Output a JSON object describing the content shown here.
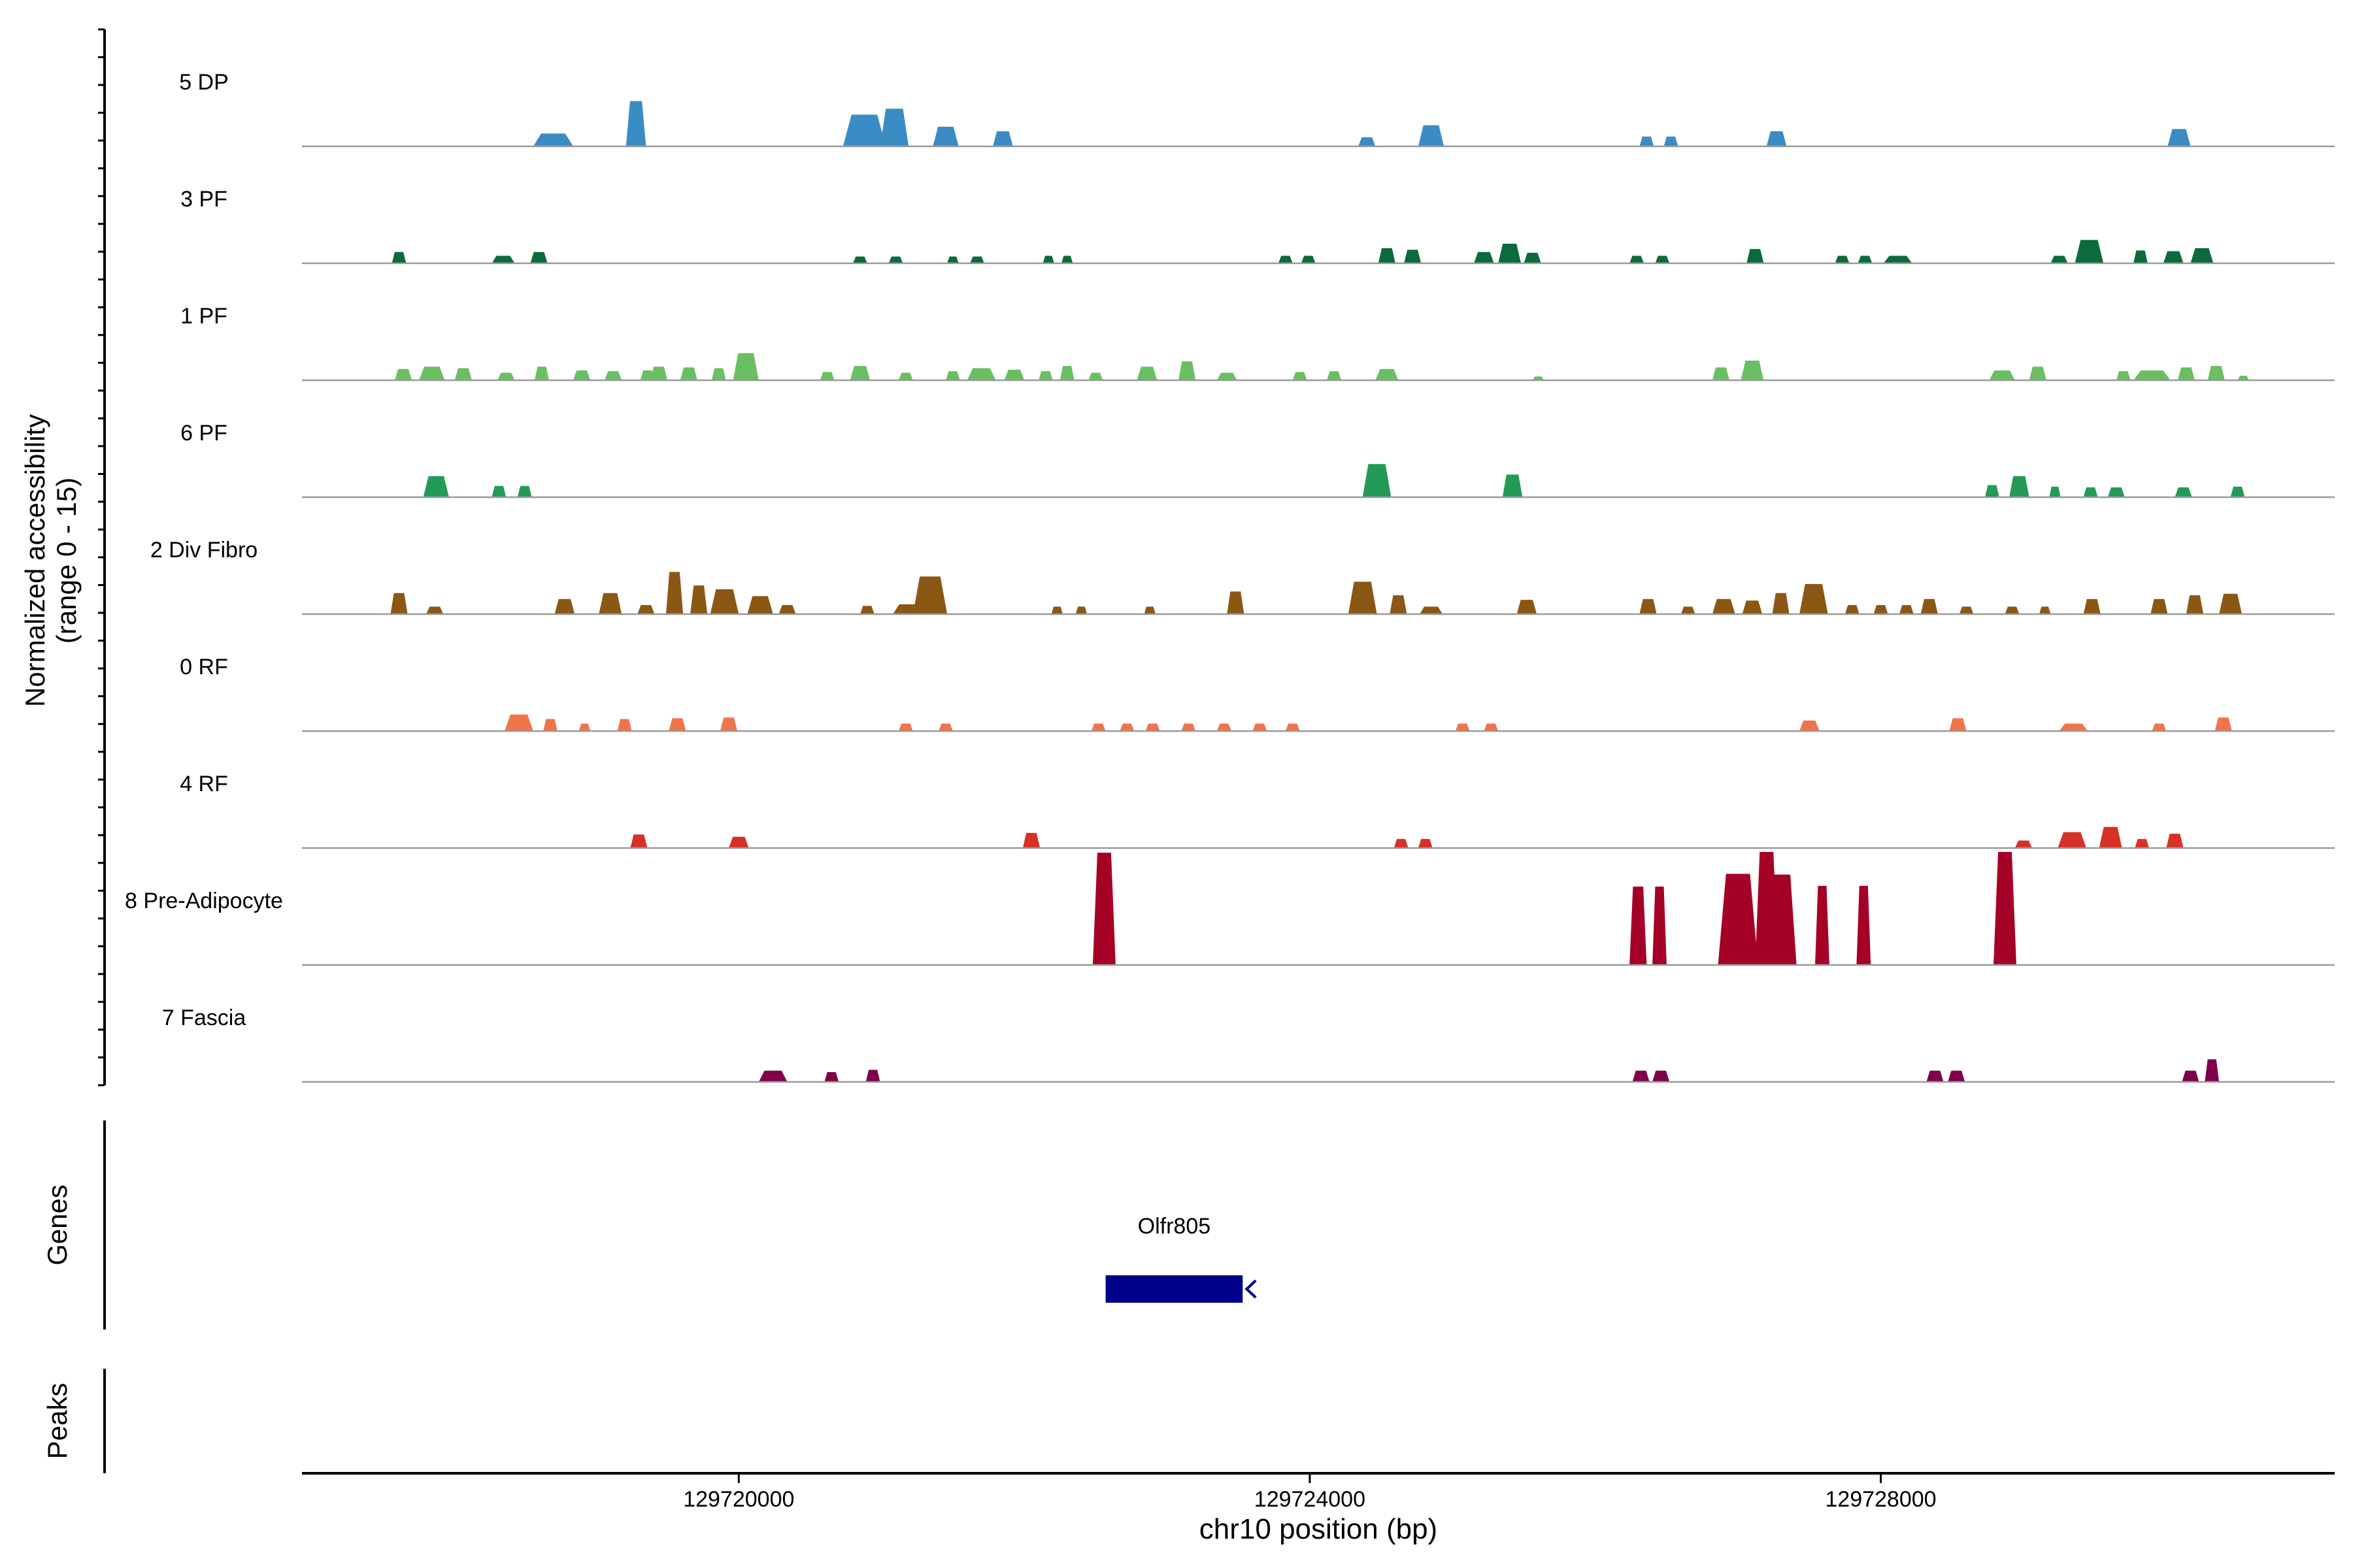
{
  "chart_data": {
    "type": "area",
    "title": "",
    "xlabel": "chr10 position (bp)",
    "ylabel_line1": "Normalized accessibility",
    "ylabel_line2": "(range 0 - 15)",
    "xlim": [
      129716940,
      129731180
    ],
    "ylim": [
      0,
      15
    ],
    "x_ticks": [
      {
        "value": 129720000,
        "label": "129720000"
      },
      {
        "value": 129724000,
        "label": "129724000"
      },
      {
        "value": 129728000,
        "label": "129728000"
      }
    ],
    "series": [
      {
        "name": "5 DP",
        "color": "#3a8cc4",
        "peaks": [
          [
            129718700,
            140,
            1.7
          ],
          [
            129719280,
            70,
            6.0
          ],
          [
            129720880,
            150,
            4.2
          ],
          [
            129721090,
            100,
            5.0
          ],
          [
            129721450,
            90,
            2.6
          ],
          [
            129721850,
            70,
            2.0
          ],
          [
            129724400,
            60,
            1.2
          ],
          [
            129724850,
            90,
            2.8
          ],
          [
            129726360,
            50,
            1.3
          ],
          [
            129726530,
            50,
            1.3
          ],
          [
            129727270,
            70,
            2.0
          ],
          [
            129730090,
            80,
            2.3
          ]
        ]
      },
      {
        "name": "3 PF",
        "color": "#0b6b3a",
        "peaks": [
          [
            129717620,
            50,
            1.5
          ],
          [
            129718350,
            80,
            1.0
          ],
          [
            129718600,
            60,
            1.5
          ],
          [
            129720850,
            50,
            0.9
          ],
          [
            129721100,
            50,
            0.9
          ],
          [
            129721500,
            40,
            0.9
          ],
          [
            129721670,
            50,
            0.9
          ],
          [
            129722170,
            40,
            1.0
          ],
          [
            129722300,
            40,
            1.0
          ],
          [
            129723830,
            50,
            1.0
          ],
          [
            129723990,
            50,
            1.0
          ],
          [
            129724540,
            60,
            2.0
          ],
          [
            129724720,
            60,
            1.8
          ],
          [
            129725220,
            70,
            1.5
          ],
          [
            129725400,
            80,
            2.6
          ],
          [
            129725560,
            60,
            1.4
          ],
          [
            129726290,
            50,
            1.0
          ],
          [
            129726470,
            50,
            1.0
          ],
          [
            129727120,
            60,
            1.9
          ],
          [
            129727730,
            50,
            1.0
          ],
          [
            129727890,
            50,
            1.0
          ],
          [
            129728120,
            100,
            1.0
          ],
          [
            129729250,
            60,
            1.0
          ],
          [
            129729460,
            100,
            3.1
          ],
          [
            129729820,
            50,
            1.7
          ],
          [
            129730050,
            70,
            1.6
          ],
          [
            129730250,
            80,
            2.0
          ]
        ]
      },
      {
        "name": "1 PF",
        "color": "#6abf63",
        "peaks": [
          [
            129717650,
            60,
            1.5
          ],
          [
            129717850,
            90,
            1.8
          ],
          [
            129718070,
            60,
            1.6
          ],
          [
            129718370,
            60,
            1.0
          ],
          [
            129718620,
            50,
            1.8
          ],
          [
            129718900,
            60,
            1.3
          ],
          [
            129719120,
            60,
            1.2
          ],
          [
            129719360,
            50,
            1.3
          ],
          [
            129719440,
            60,
            1.8
          ],
          [
            129719650,
            60,
            1.7
          ],
          [
            129719860,
            50,
            1.6
          ],
          [
            129720050,
            90,
            3.6
          ],
          [
            129720620,
            50,
            1.1
          ],
          [
            129720850,
            70,
            1.9
          ],
          [
            129721170,
            50,
            1.0
          ],
          [
            129721500,
            50,
            1.2
          ],
          [
            129721700,
            100,
            1.6
          ],
          [
            129721930,
            70,
            1.4
          ],
          [
            129722150,
            50,
            1.2
          ],
          [
            129722300,
            50,
            1.9
          ],
          [
            129722500,
            50,
            1.0
          ],
          [
            129722860,
            70,
            1.8
          ],
          [
            129723140,
            60,
            2.5
          ],
          [
            129723420,
            70,
            1.0
          ],
          [
            129723930,
            50,
            1.1
          ],
          [
            129724170,
            50,
            1.2
          ],
          [
            129724540,
            80,
            1.5
          ],
          [
            129725600,
            40,
            0.5
          ],
          [
            129726880,
            60,
            1.7
          ],
          [
            129727100,
            80,
            2.6
          ],
          [
            129728850,
            90,
            1.3
          ],
          [
            129729100,
            60,
            1.8
          ],
          [
            129729700,
            50,
            1.2
          ],
          [
            129729900,
            130,
            1.3
          ],
          [
            129730140,
            60,
            1.7
          ],
          [
            129730350,
            60,
            1.9
          ],
          [
            129730540,
            40,
            0.6
          ]
        ]
      },
      {
        "name": "6 PF",
        "color": "#239b56",
        "peaks": [
          [
            129717880,
            90,
            2.8
          ],
          [
            129718320,
            50,
            1.5
          ],
          [
            129718500,
            50,
            1.5
          ],
          [
            129724470,
            100,
            4.4
          ],
          [
            129725420,
            70,
            3.0
          ],
          [
            129728780,
            50,
            1.6
          ],
          [
            129728970,
            70,
            2.8
          ],
          [
            129729220,
            40,
            1.4
          ],
          [
            129729470,
            50,
            1.3
          ],
          [
            129729650,
            60,
            1.3
          ],
          [
            129730120,
            60,
            1.3
          ],
          [
            129730500,
            50,
            1.4
          ]
        ]
      },
      {
        "name": "2 Div Fibro",
        "color": "#8b5714",
        "peaks": [
          [
            129717620,
            60,
            2.8
          ],
          [
            129717870,
            60,
            1.0
          ],
          [
            129718780,
            70,
            2.0
          ],
          [
            129719100,
            80,
            2.8
          ],
          [
            129719350,
            60,
            1.2
          ],
          [
            129719550,
            60,
            5.6
          ],
          [
            129719720,
            60,
            3.8
          ],
          [
            129719900,
            100,
            3.3
          ],
          [
            129720150,
            90,
            2.4
          ],
          [
            129720340,
            60,
            1.2
          ],
          [
            129720900,
            50,
            1.1
          ],
          [
            129721190,
            110,
            1.3
          ],
          [
            129721340,
            120,
            5.0
          ],
          [
            129722230,
            40,
            1.0
          ],
          [
            129722400,
            40,
            1.0
          ],
          [
            129722880,
            40,
            1.0
          ],
          [
            129723480,
            60,
            3.0
          ],
          [
            129724370,
            100,
            4.3
          ],
          [
            129724620,
            60,
            2.5
          ],
          [
            129724850,
            80,
            1.0
          ],
          [
            129725520,
            70,
            1.9
          ],
          [
            129726370,
            60,
            2.0
          ],
          [
            129726650,
            50,
            1.0
          ],
          [
            129726900,
            80,
            2.0
          ],
          [
            129727100,
            70,
            1.8
          ],
          [
            129727300,
            60,
            2.8
          ],
          [
            129727530,
            100,
            4.0
          ],
          [
            129727800,
            50,
            1.2
          ],
          [
            129728000,
            50,
            1.2
          ],
          [
            129728180,
            50,
            1.2
          ],
          [
            129728340,
            60,
            2.0
          ],
          [
            129728600,
            50,
            1.0
          ],
          [
            129728920,
            50,
            1.0
          ],
          [
            129729150,
            40,
            1.0
          ],
          [
            129729480,
            60,
            2.0
          ],
          [
            129729950,
            60,
            2.0
          ],
          [
            129730200,
            60,
            2.5
          ],
          [
            129730450,
            80,
            2.7
          ]
        ]
      },
      {
        "name": "0 RF",
        "color": "#f0744a",
        "peaks": [
          [
            129718460,
            100,
            2.2
          ],
          [
            129718680,
            50,
            1.6
          ],
          [
            129718920,
            40,
            1.0
          ],
          [
            129719200,
            50,
            1.6
          ],
          [
            129719570,
            60,
            1.7
          ],
          [
            129719930,
            60,
            1.8
          ],
          [
            129721170,
            50,
            1.0
          ],
          [
            129721450,
            50,
            1.0
          ],
          [
            129722520,
            50,
            1.0
          ],
          [
            129722720,
            50,
            1.0
          ],
          [
            129722900,
            50,
            1.0
          ],
          [
            129723150,
            50,
            1.0
          ],
          [
            129723400,
            50,
            1.0
          ],
          [
            129723650,
            50,
            1.0
          ],
          [
            129723880,
            50,
            1.0
          ],
          [
            129725070,
            50,
            1.0
          ],
          [
            129725270,
            50,
            1.0
          ],
          [
            129727500,
            70,
            1.4
          ],
          [
            129728540,
            60,
            1.7
          ],
          [
            129729350,
            100,
            1.0
          ],
          [
            129729950,
            50,
            1.0
          ],
          [
            129730400,
            60,
            1.8
          ]
        ]
      },
      {
        "name": "4 RF",
        "color": "#d73027",
        "peaks": [
          [
            129719300,
            60,
            1.8
          ],
          [
            129720000,
            70,
            1.5
          ],
          [
            129722050,
            60,
            2.0
          ],
          [
            129724640,
            50,
            1.2
          ],
          [
            129724810,
            50,
            1.2
          ],
          [
            129729000,
            60,
            1.0
          ],
          [
            129729340,
            100,
            2.1
          ],
          [
            129729610,
            80,
            2.8
          ],
          [
            129729830,
            50,
            1.2
          ],
          [
            129730060,
            60,
            1.9
          ]
        ]
      },
      {
        "name": "8 Pre-Adipocyte",
        "color": "#a50026",
        "peaks": [
          [
            129722560,
            80,
            14.9
          ],
          [
            129726300,
            60,
            10.4
          ],
          [
            129726450,
            50,
            10.4
          ],
          [
            129727000,
            140,
            12.1
          ],
          [
            129727200,
            80,
            15.0
          ],
          [
            129727300,
            110,
            12.0
          ],
          [
            129727590,
            50,
            10.5
          ],
          [
            129727880,
            50,
            10.5
          ],
          [
            129728870,
            80,
            15.0
          ]
        ]
      },
      {
        "name": "7 Fascia",
        "color": "#80004a",
        "peaks": [
          [
            129720240,
            100,
            1.5
          ],
          [
            129720650,
            50,
            1.3
          ],
          [
            129720940,
            50,
            1.6
          ],
          [
            129726320,
            60,
            1.5
          ],
          [
            129726460,
            60,
            1.5
          ],
          [
            129728380,
            60,
            1.5
          ],
          [
            129728530,
            60,
            1.5
          ],
          [
            129730170,
            60,
            1.5
          ],
          [
            129730320,
            50,
            3.0
          ]
        ]
      }
    ],
    "genes_track": {
      "label": "Genes",
      "genes": [
        {
          "name": "Olfr805",
          "start": 129722570,
          "end": 129723530,
          "strand": "-",
          "color": "#00008b"
        }
      ]
    },
    "peaks_track": {
      "label": "Peaks",
      "peaks": []
    }
  }
}
